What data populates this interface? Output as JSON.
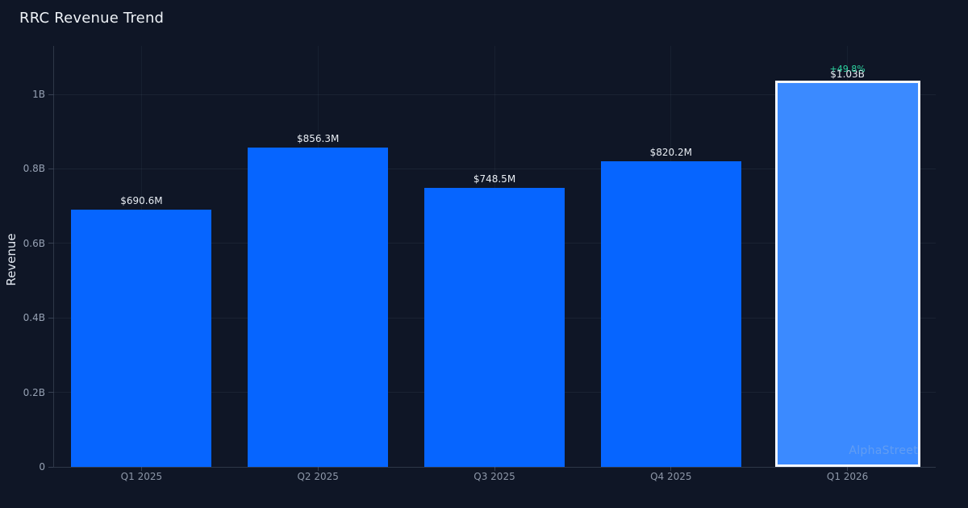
{
  "header": {
    "title": "RRC Revenue Trend"
  },
  "watermark": "AlphaStreet",
  "chart_data": {
    "type": "bar",
    "title": "RRC Revenue Trend",
    "xlabel": "",
    "ylabel": "Revenue",
    "categories": [
      "Q1 2025",
      "Q2 2025",
      "Q3 2025",
      "Q4 2025",
      "Q1 2026"
    ],
    "values": [
      690600000,
      856300000,
      748500000,
      820200000,
      1030000000
    ],
    "value_labels": [
      "$690.6M",
      "$856.3M",
      "$748.5M",
      "$820.2M",
      "$1.03B"
    ],
    "change_labels": [
      null,
      null,
      null,
      null,
      "+49.8%"
    ],
    "highlight_index": 4,
    "ylim": [
      0,
      1130000000
    ],
    "yticks": [
      0,
      200000000,
      400000000,
      600000000,
      800000000,
      1000000000
    ],
    "ytick_labels": [
      "0",
      "0.2B",
      "0.4B",
      "0.6B",
      "0.8B",
      "1B"
    ],
    "grid": true,
    "legend": false,
    "colors": {
      "background": "#0f1626",
      "bar": "#0665ff",
      "highlight_bar": "#3b8aff",
      "highlight_border": "#f5f8fc",
      "change_positive": "#2dd4a0",
      "value_label": "#e8edf3",
      "tick_label": "#96a1b3"
    }
  }
}
